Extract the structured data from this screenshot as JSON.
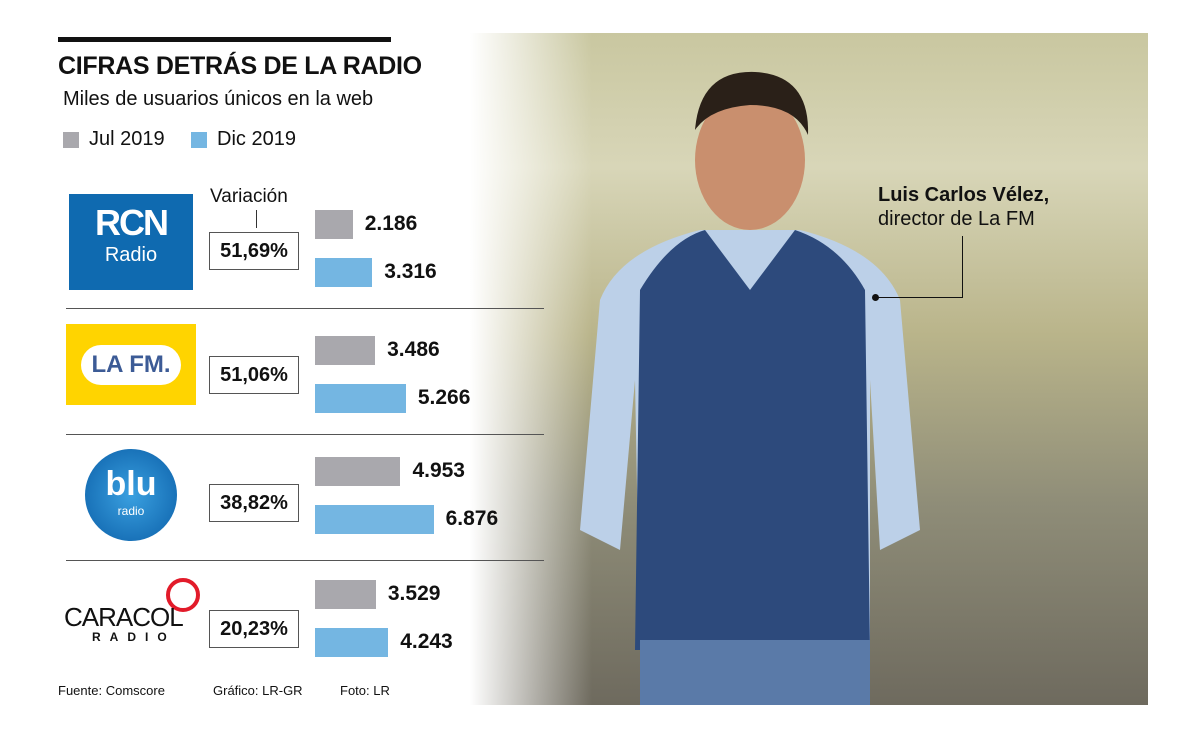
{
  "title": "CIFRAS DETRÁS DE LA RADIO",
  "subtitle": "Miles de usuarios únicos en la web",
  "variation_label": "Variación",
  "photo_caption": {
    "name": "Luis Carlos Vélez,",
    "role": "director de La FM"
  },
  "footer": {
    "source": "Fuente: Comscore",
    "graphic": "Gráfico: LR-GR",
    "photo": "Foto: LR"
  },
  "logos": {
    "rcn": "Radio",
    "lafm": "LA FM.",
    "blu": "blu",
    "blu_sub": "radio",
    "caracol": "CARACOL",
    "caracol_sub": "RADIO"
  },
  "chart_data": {
    "type": "bar",
    "title": "CIFRAS DETRÁS DE LA RADIO",
    "subtitle": "Miles de usuarios únicos en la web",
    "categories": [
      "RCN Radio",
      "La FM",
      "Blu Radio",
      "Caracol Radio"
    ],
    "series": [
      {
        "name": "Jul 2019",
        "color": "#a9a8ad",
        "values": [
          2186,
          3486,
          4953,
          3529
        ],
        "labels": [
          "2.186",
          "3.486",
          "4.953",
          "3.529"
        ]
      },
      {
        "name": "Dic 2019",
        "color": "#74b6e2",
        "values": [
          3316,
          5266,
          6876,
          4243
        ],
        "labels": [
          "3.316",
          "5.266",
          "6.876",
          "4.243"
        ]
      }
    ],
    "variation": [
      "51,69%",
      "51,06%",
      "38,82%",
      "20,23%"
    ],
    "orientation": "horizontal",
    "legend": "top-left"
  }
}
